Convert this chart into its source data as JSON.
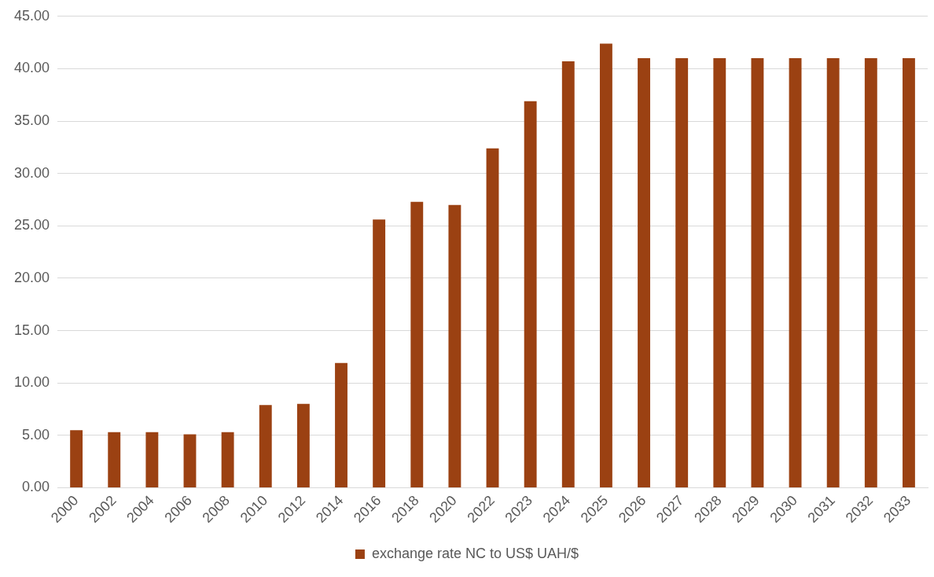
{
  "chart_data": {
    "type": "bar",
    "categories": [
      "2000",
      "2002",
      "2004",
      "2006",
      "2008",
      "2010",
      "2012",
      "2014",
      "2016",
      "2018",
      "2020",
      "2022",
      "2023",
      "2024",
      "2025",
      "2026",
      "2027",
      "2028",
      "2029",
      "2030",
      "2031",
      "2032",
      "2033"
    ],
    "series": [
      {
        "name": "exchange rate NC to US$ UAH/$",
        "color": "#9b4112",
        "values": [
          5.5,
          5.3,
          5.3,
          5.1,
          5.3,
          7.9,
          8.0,
          11.9,
          25.6,
          27.3,
          27.0,
          32.4,
          36.9,
          40.7,
          42.4,
          41.0,
          41.0,
          41.0,
          41.0,
          41.0,
          41.0,
          41.0,
          41.0
        ]
      }
    ],
    "ylim": [
      0,
      45
    ],
    "yticks": [
      {
        "value": 0,
        "label": "0.00"
      },
      {
        "value": 5,
        "label": "5.00"
      },
      {
        "value": 10,
        "label": "10.00"
      },
      {
        "value": 15,
        "label": "15.00"
      },
      {
        "value": 20,
        "label": "20.00"
      },
      {
        "value": 25,
        "label": "25.00"
      },
      {
        "value": 30,
        "label": "30.00"
      },
      {
        "value": 35,
        "label": "35.00"
      },
      {
        "value": 40,
        "label": "40.00"
      },
      {
        "value": 45,
        "label": "45.00"
      }
    ],
    "grid": "y",
    "legend": "bottom"
  }
}
